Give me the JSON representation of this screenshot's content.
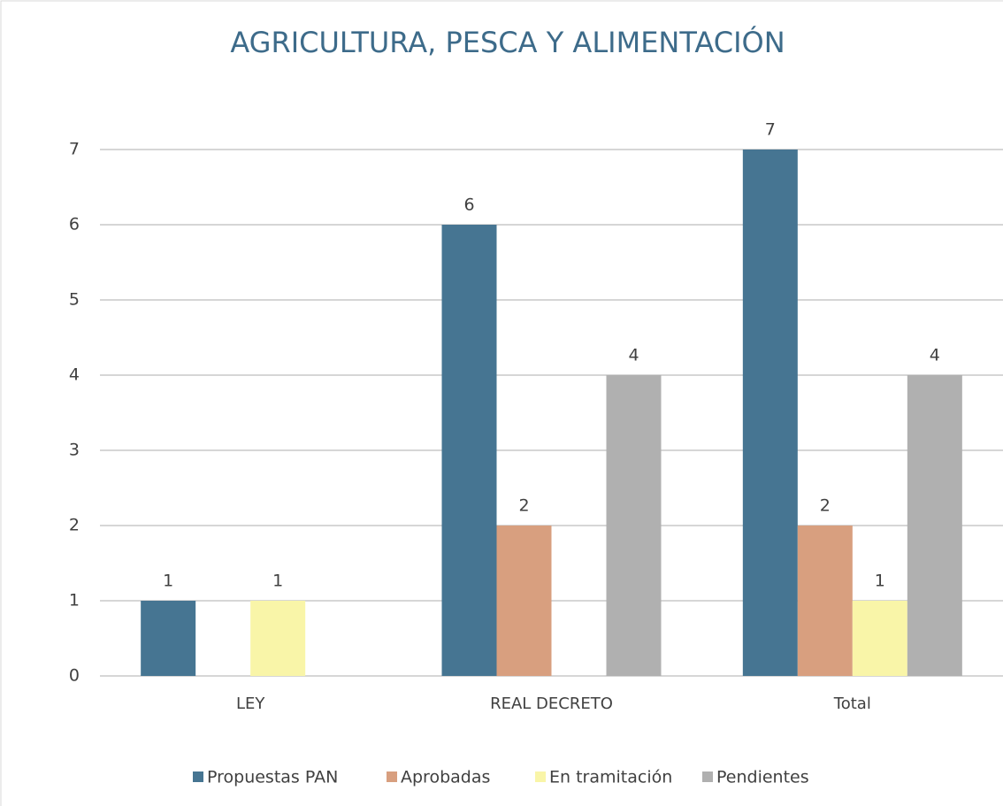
{
  "chart_data": {
    "type": "bar",
    "title": "AGRICULTURA, PESCA Y ALIMENTACIÓN",
    "categories": [
      "LEY",
      "REAL DECRETO",
      "Total"
    ],
    "series": [
      {
        "name": "Propuestas PAN",
        "color": "#467592",
        "values": [
          1,
          6,
          7
        ]
      },
      {
        "name": "Aprobadas",
        "color": "#d89f7f",
        "values": [
          null,
          2,
          2
        ]
      },
      {
        "name": "En tramitación",
        "color": "#f9f5a8",
        "values": [
          1,
          null,
          1
        ]
      },
      {
        "name": "Pendientes",
        "color": "#b0b0b0",
        "values": [
          null,
          4,
          4
        ]
      }
    ],
    "ylim": [
      0,
      7
    ],
    "yticks": [
      0,
      1,
      2,
      3,
      4,
      5,
      6,
      7
    ],
    "grid": true,
    "legend": "bottom"
  }
}
